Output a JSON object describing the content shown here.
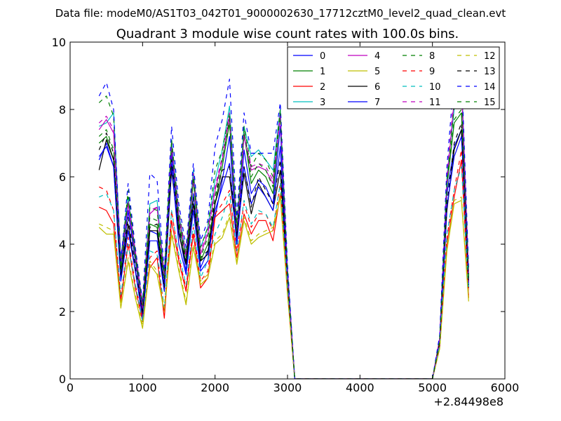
{
  "suptitle": "Data file: modeM0/AS1T03_042T01_9000002630_17712cztM0_level2_quad_clean.evt",
  "chart_data": {
    "type": "line",
    "title": "Quadrant 3 module wise count rates with 100.0s bins.",
    "xlabel": "",
    "ylabel": "",
    "x_offset_label": "+2.84498e8",
    "xlim": [
      0,
      6000
    ],
    "ylim": [
      0,
      10
    ],
    "xticks": [
      "0",
      "1000",
      "2000",
      "3000",
      "4000",
      "5000",
      "6000"
    ],
    "yticks": [
      "0",
      "2",
      "4",
      "6",
      "8",
      "10"
    ],
    "grid": false,
    "legend": {
      "position": "top-right",
      "columns": 4
    },
    "x": [
      400,
      500,
      600,
      700,
      800,
      900,
      1000,
      1100,
      1200,
      1300,
      1400,
      1500,
      1600,
      1700,
      1800,
      1900,
      2000,
      2100,
      2200,
      2300,
      2400,
      2500,
      2600,
      2700,
      2800,
      2900,
      3000,
      3100,
      3200,
      3300,
      3400,
      3500,
      3600,
      3700,
      3800,
      3900,
      4000,
      4100,
      4200,
      4300,
      4400,
      4500,
      4600,
      4700,
      4800,
      4900,
      5000,
      5100,
      5200,
      5300,
      5400,
      5500
    ],
    "series": [
      {
        "name": "0",
        "color": "#0000ff",
        "dash": false,
        "values": [
          6.5,
          7.0,
          6.3,
          3.0,
          5.0,
          3.5,
          2.0,
          4.4,
          4.3,
          2.8,
          6.7,
          4.4,
          3.2,
          5.5,
          3.3,
          3.8,
          4.8,
          5.9,
          7.2,
          4.0,
          6.8,
          5.5,
          5.9,
          5.7,
          5.2,
          7.5,
          3.0,
          0,
          0,
          0,
          0,
          0,
          0,
          0,
          0,
          0,
          0,
          0,
          0,
          0,
          0,
          0,
          0,
          0,
          0,
          0,
          0,
          1.1,
          5.5,
          6.9,
          7.4,
          2.9
        ]
      },
      {
        "name": "1",
        "color": "#008000",
        "dash": false,
        "values": [
          7.0,
          7.2,
          6.5,
          3.2,
          5.3,
          3.6,
          2.1,
          4.6,
          4.5,
          3.0,
          7.0,
          4.6,
          3.4,
          5.9,
          3.5,
          4.0,
          5.2,
          6.3,
          7.6,
          4.3,
          7.3,
          5.8,
          6.2,
          6.0,
          5.5,
          7.9,
          3.1,
          0,
          0,
          0,
          0,
          0,
          0,
          0,
          0,
          0,
          0,
          0,
          0,
          0,
          0,
          0,
          0,
          0,
          0,
          0,
          0,
          1.1,
          5.7,
          7.6,
          7.9,
          3.0
        ]
      },
      {
        "name": "2",
        "color": "#ff0000",
        "dash": false,
        "values": [
          5.1,
          5.0,
          4.6,
          2.3,
          4.0,
          2.7,
          1.7,
          3.3,
          3.6,
          1.8,
          4.7,
          3.5,
          2.6,
          4.3,
          2.7,
          3.0,
          4.8,
          5.0,
          5.2,
          3.6,
          4.9,
          4.3,
          4.7,
          4.7,
          4.1,
          5.5,
          2.6,
          0,
          0,
          0,
          0,
          0,
          0,
          0,
          0,
          0,
          0,
          0,
          0,
          0,
          0,
          0,
          0,
          0,
          0,
          0,
          0,
          1.0,
          4.0,
          5.4,
          6.5,
          2.4
        ]
      },
      {
        "name": "3",
        "color": "#00bfbf",
        "dash": false,
        "values": [
          7.5,
          7.6,
          7.9,
          3.6,
          5.4,
          3.8,
          2.2,
          5.2,
          5.3,
          3.1,
          7.1,
          4.9,
          3.7,
          6.2,
          3.9,
          4.5,
          5.9,
          6.8,
          8.1,
          4.5,
          7.5,
          6.6,
          6.8,
          6.5,
          6.2,
          8.0,
          3.3,
          0,
          0,
          0,
          0,
          0,
          0,
          0,
          0,
          0,
          0,
          0,
          0,
          0,
          0,
          0,
          0,
          0,
          0,
          0,
          0,
          1.2,
          6.0,
          8.0,
          9.1,
          3.1
        ]
      },
      {
        "name": "4",
        "color": "#bf00bf",
        "dash": false,
        "values": [
          7.4,
          7.7,
          7.3,
          3.4,
          5.2,
          3.7,
          2.1,
          4.9,
          5.1,
          3.0,
          6.9,
          4.8,
          3.6,
          6.0,
          3.7,
          4.3,
          5.6,
          6.5,
          7.8,
          4.3,
          7.2,
          6.2,
          6.3,
          6.2,
          5.8,
          7.8,
          3.2,
          0,
          0,
          0,
          0,
          0,
          0,
          0,
          0,
          0,
          0,
          0,
          0,
          0,
          0,
          0,
          0,
          0,
          0,
          0,
          0,
          1.2,
          5.8,
          8.3,
          8.7,
          3.0
        ]
      },
      {
        "name": "5",
        "color": "#bfbf00",
        "dash": false,
        "values": [
          4.5,
          4.3,
          4.3,
          2.1,
          3.5,
          2.4,
          1.5,
          3.4,
          3.1,
          2.0,
          4.3,
          3.2,
          2.2,
          3.9,
          2.8,
          3.0,
          4.0,
          4.2,
          4.8,
          3.4,
          4.7,
          4.0,
          4.2,
          4.3,
          4.4,
          5.4,
          2.5,
          0,
          0,
          0,
          0,
          0,
          0,
          0,
          0,
          0,
          0,
          0,
          0,
          0,
          0,
          0,
          0,
          0,
          0,
          0,
          0,
          0.9,
          3.8,
          5.2,
          5.3,
          2.3
        ]
      },
      {
        "name": "6",
        "color": "#000000",
        "dash": false,
        "values": [
          6.2,
          7.1,
          6.5,
          3.0,
          4.6,
          3.2,
          1.9,
          4.4,
          4.4,
          2.6,
          6.2,
          4.3,
          3.4,
          5.2,
          3.5,
          3.7,
          5.2,
          6.0,
          6.0,
          4.2,
          6.1,
          4.9,
          5.8,
          5.4,
          5.0,
          6.2,
          2.9,
          0,
          0,
          0,
          0,
          0,
          0,
          0,
          0,
          0,
          0,
          0,
          0,
          0,
          0,
          0,
          0,
          0,
          0,
          0,
          0,
          1.1,
          5.0,
          6.8,
          7.4,
          2.7
        ]
      },
      {
        "name": "7",
        "color": "#0000ff",
        "dash": false,
        "values": [
          6.6,
          6.9,
          6.3,
          2.9,
          4.4,
          3.2,
          1.8,
          4.1,
          4.1,
          2.6,
          6.4,
          4.0,
          3.1,
          5.0,
          3.2,
          3.5,
          5.0,
          5.7,
          6.4,
          4.0,
          6.3,
          5.2,
          5.7,
          5.4,
          5.0,
          6.9,
          2.8,
          0,
          0,
          0,
          0,
          0,
          0,
          0,
          0,
          0,
          0,
          0,
          0,
          0,
          0,
          0,
          0,
          0,
          0,
          0,
          0,
          1.0,
          5.1,
          6.6,
          7.2,
          2.8
        ]
      },
      {
        "name": "8",
        "color": "#008000",
        "dash": true,
        "values": [
          8.2,
          8.4,
          7.8,
          3.4,
          5.6,
          3.8,
          2.2,
          5.1,
          5.0,
          3.0,
          7.1,
          5.0,
          3.7,
          6.1,
          3.9,
          4.5,
          6.2,
          6.8,
          7.9,
          4.6,
          7.5,
          6.3,
          6.7,
          6.5,
          6.0,
          8.0,
          3.2,
          0,
          0,
          0,
          0,
          0,
          0,
          0,
          0,
          0,
          0,
          0,
          0,
          0,
          0,
          0,
          0,
          0,
          0,
          0,
          0,
          1.2,
          5.9,
          8.1,
          8.4,
          3.1
        ]
      },
      {
        "name": "9",
        "color": "#ff0000",
        "dash": true,
        "values": [
          5.7,
          5.6,
          5.0,
          2.4,
          4.2,
          2.8,
          1.8,
          3.6,
          3.8,
          2.0,
          5.0,
          3.6,
          2.7,
          4.5,
          2.9,
          3.2,
          4.9,
          5.2,
          5.6,
          3.8,
          5.2,
          4.5,
          4.9,
          4.9,
          4.4,
          5.8,
          2.7,
          0,
          0,
          0,
          0,
          0,
          0,
          0,
          0,
          0,
          0,
          0,
          0,
          0,
          0,
          0,
          0,
          0,
          0,
          0,
          0,
          1.0,
          4.2,
          5.6,
          6.8,
          2.5
        ]
      },
      {
        "name": "10",
        "color": "#00bfbf",
        "dash": true,
        "values": [
          5.4,
          5.5,
          5.0,
          2.5,
          4.0,
          2.8,
          1.7,
          3.8,
          3.7,
          2.1,
          5.0,
          3.7,
          2.8,
          4.6,
          3.0,
          3.5,
          4.3,
          4.8,
          5.5,
          3.8,
          5.3,
          4.6,
          5.0,
          4.9,
          4.5,
          5.8,
          2.7,
          0,
          0,
          0,
          0,
          0,
          0,
          0,
          0,
          0,
          0,
          0,
          0,
          0,
          0,
          0,
          0,
          0,
          0,
          0,
          0,
          1.0,
          4.3,
          5.6,
          6.3,
          2.6
        ]
      },
      {
        "name": "11",
        "color": "#bf00bf",
        "dash": true,
        "values": [
          7.6,
          7.8,
          7.4,
          3.5,
          5.3,
          3.8,
          2.2,
          5.0,
          5.1,
          3.1,
          7.0,
          4.9,
          3.7,
          6.1,
          3.8,
          4.4,
          5.7,
          6.6,
          7.9,
          4.4,
          7.3,
          6.3,
          6.4,
          6.3,
          5.9,
          7.9,
          3.2,
          0,
          0,
          0,
          0,
          0,
          0,
          0,
          0,
          0,
          0,
          0,
          0,
          0,
          0,
          0,
          0,
          0,
          0,
          0,
          0,
          1.2,
          6.0,
          8.5,
          8.9,
          3.1
        ]
      },
      {
        "name": "12",
        "color": "#bfbf00",
        "dash": true,
        "values": [
          4.6,
          4.5,
          4.4,
          2.2,
          3.6,
          2.5,
          1.6,
          3.5,
          3.2,
          2.1,
          4.4,
          3.3,
          2.3,
          4.0,
          2.9,
          3.1,
          4.1,
          4.3,
          4.9,
          3.5,
          4.8,
          4.1,
          4.3,
          4.4,
          4.5,
          5.5,
          2.5,
          0,
          0,
          0,
          0,
          0,
          0,
          0,
          0,
          0,
          0,
          0,
          0,
          0,
          0,
          0,
          0,
          0,
          0,
          0,
          0,
          0.9,
          3.9,
          5.3,
          5.4,
          2.4
        ]
      },
      {
        "name": "13",
        "color": "#000000",
        "dash": true,
        "values": [
          6.8,
          7.3,
          6.7,
          3.1,
          4.8,
          3.3,
          2.0,
          4.5,
          4.6,
          2.7,
          6.5,
          4.5,
          3.5,
          5.4,
          3.6,
          3.8,
          5.4,
          6.2,
          6.3,
          4.3,
          6.3,
          5.1,
          6.0,
          5.6,
          5.2,
          6.5,
          3.0,
          0,
          0,
          0,
          0,
          0,
          0,
          0,
          0,
          0,
          0,
          0,
          0,
          0,
          0,
          0,
          0,
          0,
          0,
          0,
          0,
          1.1,
          5.2,
          7.0,
          7.6,
          2.8
        ]
      },
      {
        "name": "14",
        "color": "#0000ff",
        "dash": true,
        "values": [
          8.4,
          8.8,
          8.0,
          3.5,
          5.8,
          3.9,
          2.3,
          6.1,
          5.9,
          3.2,
          7.5,
          5.2,
          3.9,
          6.4,
          4.1,
          4.7,
          6.9,
          7.7,
          8.9,
          4.8,
          7.9,
          6.7,
          6.7,
          6.7,
          6.7,
          8.2,
          3.4,
          0,
          0,
          0,
          0,
          0,
          0,
          0,
          0,
          0,
          0,
          0,
          0,
          0,
          0,
          0,
          0,
          0,
          0,
          0,
          0,
          1.3,
          6.3,
          9.0,
          9.3,
          3.3
        ]
      },
      {
        "name": "15",
        "color": "#008000",
        "dash": true,
        "values": [
          7.2,
          7.4,
          6.8,
          3.3,
          5.4,
          3.7,
          2.2,
          4.8,
          4.7,
          3.0,
          7.0,
          4.7,
          3.6,
          6.0,
          3.6,
          4.2,
          5.4,
          6.5,
          7.7,
          4.4,
          7.4,
          6.0,
          6.4,
          6.2,
          5.7,
          7.9,
          3.1,
          0,
          0,
          0,
          0,
          0,
          0,
          0,
          0,
          0,
          0,
          0,
          0,
          0,
          0,
          0,
          0,
          0,
          0,
          0,
          0,
          1.1,
          5.8,
          7.7,
          8.0,
          3.0
        ]
      }
    ]
  }
}
